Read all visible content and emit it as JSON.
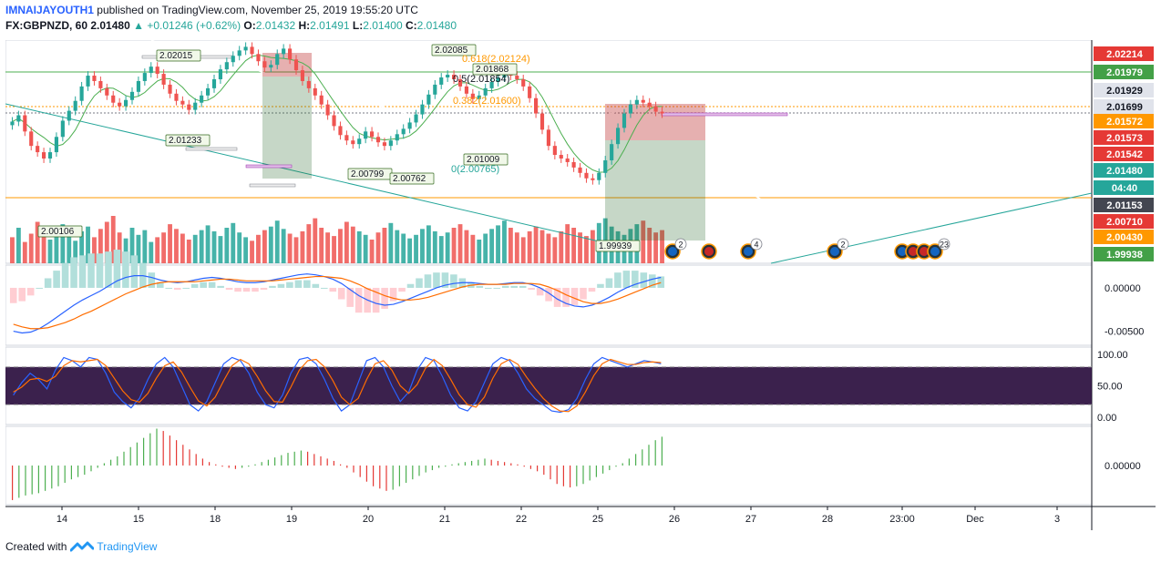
{
  "header": {
    "author": "IMNAIJAYOUTH1",
    "published_text": "published on TradingView.com, November 25, 2019 19:55:20 UTC",
    "symbol": "FX:GBPNZD, 60",
    "last": "2.01480",
    "change": "+0.01246 (+0.62%)",
    "o_label": "O:",
    "o_value": "2.01432",
    "h_label": "H:",
    "h_value": "2.01491",
    "l_label": "L:",
    "l_value": "2.01400",
    "c_label": "C:",
    "c_value": "2.01480"
  },
  "footer": {
    "created_with": "Created with",
    "brand": "TradingView"
  },
  "colors": {
    "up": "#26a69a",
    "down": "#ef5350",
    "grid": "#f0f3fa",
    "macd": "#2962ff",
    "signal": "#ff6d00",
    "stoch_k": "#2962ff",
    "stoch_d": "#ff6d00",
    "stoch_band": "#2a0e3e",
    "ma": "#4caf50"
  },
  "chart_data": [
    {
      "type": "line",
      "symbol": "FX:GBPNZD",
      "interval": "60",
      "x_ticks": [
        "14",
        "15",
        "18",
        "19",
        "20",
        "21",
        "22",
        "25",
        "26",
        "27",
        "28",
        "23:00",
        "Dec",
        "3"
      ],
      "ylim": [
        1.99938,
        2.02214
      ],
      "price_scale_labels": [
        {
          "value": "2.02214",
          "color": "#e53935"
        },
        {
          "value": "2.01979",
          "color": "#43a047"
        },
        {
          "value": "2.01929",
          "color": "#e0e3eb"
        },
        {
          "value": "2.01699",
          "color": "#e0e3eb"
        },
        {
          "value": "2.01572",
          "color": "#ff9800"
        },
        {
          "value": "2.01573",
          "color": "#e53935"
        },
        {
          "value": "2.01542",
          "color": "#e53935"
        },
        {
          "value": "2.01480",
          "color": "#26a69a"
        },
        {
          "value": "04:40",
          "color": "#26a69a"
        },
        {
          "value": "2.01153",
          "color": "#434651"
        },
        {
          "value": "2.00710",
          "color": "#e53935"
        },
        {
          "value": "2.00430",
          "color": "#ff9800"
        },
        {
          "value": "1.99938",
          "color": "#43a047"
        }
      ],
      "annotations": [
        "2.02015",
        "2.01233",
        "2.00106",
        "2.02085",
        "0.618(2.02124)",
        "2.01868",
        "0.5(2.01854)",
        "0.382(2.01600)",
        "0(2.00765)",
        "2.01009",
        "2.00799",
        "2.00762",
        "1.99939"
      ],
      "event_badges": [
        "2",
        "4",
        "2",
        "23"
      ],
      "close_series": [
        2.0139,
        2.0146,
        2.0128,
        2.0112,
        2.0105,
        2.0098,
        2.0105,
        2.0122,
        2.014,
        2.0151,
        2.0162,
        2.0178,
        2.019,
        2.0184,
        2.0176,
        2.0168,
        2.016,
        2.0156,
        2.0163,
        2.0172,
        2.0184,
        2.0193,
        2.02,
        2.0192,
        2.018,
        2.017,
        2.0162,
        2.0158,
        2.0152,
        2.016,
        2.0168,
        2.0176,
        2.0186,
        2.0197,
        2.0205,
        2.0212,
        2.0218,
        2.0222,
        2.0214,
        2.0206,
        2.0199,
        2.0202,
        2.0214,
        2.022,
        2.0208,
        2.0196,
        2.0184,
        2.0176,
        2.0168,
        2.0158,
        2.0146,
        2.0134,
        2.0124,
        2.0118,
        2.0114,
        2.012,
        2.0128,
        2.0122,
        2.0116,
        2.0112,
        2.0118,
        2.0125,
        2.0131,
        2.0138,
        2.0147,
        2.0158,
        2.0169,
        2.018,
        2.0188,
        2.0191,
        2.0186,
        2.0178,
        2.017,
        2.0164,
        2.0168,
        2.0176,
        2.0183,
        2.0188,
        2.0191,
        2.019,
        2.0186,
        2.0178,
        2.0165,
        2.0148,
        2.013,
        2.0112,
        2.0102,
        2.0098,
        2.0094,
        2.0088,
        2.0082,
        2.0076,
        2.0074,
        2.0082,
        2.0096,
        2.0114,
        2.0132,
        2.0148,
        2.0158,
        2.0163,
        2.016,
        2.0156,
        2.015,
        2.0148
      ],
      "volume_series": [
        22,
        30,
        18,
        25,
        35,
        28,
        20,
        26,
        33,
        24,
        19,
        27,
        31,
        22,
        29,
        35,
        40,
        26,
        21,
        30,
        24,
        28,
        18,
        22,
        26,
        33,
        29,
        25,
        20,
        24,
        28,
        32,
        27,
        23,
        30,
        34,
        26,
        22,
        19,
        24,
        28,
        31,
        36,
        29,
        25,
        22,
        27,
        33,
        38,
        30,
        26,
        23,
        29,
        35,
        31,
        27,
        24,
        20,
        26,
        30,
        34,
        28,
        25,
        21,
        24,
        29,
        32,
        27,
        23,
        26,
        30,
        33,
        28,
        24,
        20,
        25,
        29,
        32,
        36,
        30,
        26,
        22,
        27,
        31,
        28,
        25,
        22,
        27,
        33,
        30,
        26,
        23,
        28,
        34,
        38,
        31,
        27,
        24,
        29,
        33,
        36,
        30,
        26,
        28
      ],
      "volume_color": [
        "d",
        "u",
        "d",
        "d",
        "d",
        "d",
        "u",
        "u",
        "u",
        "u",
        "u",
        "u",
        "u",
        "d",
        "d",
        "d",
        "d",
        "d",
        "u",
        "u",
        "u",
        "u",
        "u",
        "d",
        "d",
        "d",
        "d",
        "d",
        "d",
        "u",
        "u",
        "u",
        "u",
        "u",
        "u",
        "u",
        "u",
        "u",
        "d",
        "d",
        "d",
        "u",
        "u",
        "u",
        "d",
        "d",
        "d",
        "d",
        "d",
        "d",
        "d",
        "d",
        "d",
        "d",
        "d",
        "u",
        "u",
        "d",
        "d",
        "d",
        "u",
        "u",
        "u",
        "u",
        "u",
        "u",
        "u",
        "u",
        "u",
        "u",
        "d",
        "d",
        "d",
        "d",
        "u",
        "u",
        "u",
        "u",
        "u",
        "d",
        "d",
        "d",
        "d",
        "d",
        "d",
        "d",
        "d",
        "d",
        "d",
        "d",
        "d",
        "d",
        "d",
        "u",
        "u",
        "u",
        "u",
        "u",
        "u",
        "u",
        "d",
        "d",
        "d",
        "d"
      ]
    },
    {
      "type": "line",
      "name": "MACD",
      "y_ticks": [
        "0.00000",
        "-0.00500"
      ],
      "macd_series": [
        -0.005,
        -0.0052,
        -0.0051,
        -0.0047,
        -0.0041,
        -0.0034,
        -0.0027,
        -0.002,
        -0.0014,
        -0.0009,
        -0.0004,
        0.0002,
        0.0008,
        0.0012,
        0.0014,
        0.0014,
        0.0012,
        0.0009,
        0.0007,
        0.0006,
        0.0007,
        0.0009,
        0.0011,
        0.0012,
        0.0011,
        0.0009,
        0.0007,
        0.0006,
        0.0006,
        0.0007,
        0.0009,
        0.0011,
        0.0013,
        0.0015,
        0.0016,
        0.0015,
        0.0013,
        0.001,
        0.0005,
        -0.0002,
        -0.0009,
        -0.0014,
        -0.0018,
        -0.002,
        -0.0019,
        -0.0016,
        -0.0012,
        -0.0008,
        -0.0004,
        0.0,
        0.0003,
        0.0005,
        0.0006,
        0.0006,
        0.0005,
        0.0004,
        0.0004,
        0.0005,
        0.0006,
        0.0006,
        0.0004,
        0.0,
        -0.0006,
        -0.0013,
        -0.0018,
        -0.0021,
        -0.0022,
        -0.002,
        -0.0016,
        -0.0011,
        -0.0005,
        0.0,
        0.0004,
        0.0007,
        0.001,
        0.0012
      ],
      "signal_series": [
        -0.0042,
        -0.0045,
        -0.0047,
        -0.0047,
        -0.0046,
        -0.0043,
        -0.004,
        -0.0036,
        -0.0031,
        -0.0027,
        -0.0022,
        -0.0017,
        -0.0012,
        -0.0007,
        -0.0003,
        0.0001,
        0.0004,
        0.0006,
        0.0007,
        0.0007,
        0.0007,
        0.0007,
        0.0008,
        0.0009,
        0.001,
        0.001,
        0.0009,
        0.0008,
        0.0008,
        0.0008,
        0.0008,
        0.0009,
        0.001,
        0.0011,
        0.0012,
        0.0013,
        0.0013,
        0.0012,
        0.0011,
        0.0008,
        0.0004,
        -0.0001,
        -0.0005,
        -0.0009,
        -0.0012,
        -0.0014,
        -0.0014,
        -0.0013,
        -0.0011,
        -0.0008,
        -0.0005,
        -0.0002,
        0.0001,
        0.0003,
        0.0004,
        0.0004,
        0.0004,
        0.0004,
        0.0005,
        0.0005,
        0.0005,
        0.0004,
        0.0001,
        -0.0003,
        -0.0008,
        -0.0012,
        -0.0016,
        -0.0018,
        -0.0018,
        -0.0016,
        -0.0013,
        -0.0009,
        -0.0005,
        -0.0001,
        0.0003,
        0.0006
      ]
    },
    {
      "type": "line",
      "name": "Stochastic",
      "y_ticks": [
        "100.00",
        "50.00",
        "0.00"
      ],
      "band": [
        20,
        80
      ],
      "k_series": [
        35,
        55,
        70,
        60,
        45,
        75,
        95,
        90,
        80,
        95,
        92,
        70,
        40,
        25,
        15,
        30,
        60,
        85,
        95,
        80,
        50,
        20,
        10,
        25,
        55,
        85,
        95,
        90,
        70,
        40,
        20,
        15,
        35,
        70,
        92,
        95,
        85,
        60,
        30,
        10,
        20,
        55,
        90,
        95,
        80,
        50,
        25,
        40,
        75,
        95,
        90,
        65,
        35,
        15,
        10,
        25,
        55,
        85,
        95,
        90,
        70,
        45,
        30,
        20,
        10,
        8,
        12,
        30,
        60,
        85,
        95,
        90,
        85,
        80,
        85,
        90,
        88,
        85
      ],
      "d_series": [
        40,
        48,
        60,
        62,
        57,
        65,
        82,
        90,
        88,
        90,
        92,
        82,
        62,
        42,
        28,
        24,
        38,
        62,
        82,
        88,
        72,
        48,
        26,
        18,
        32,
        58,
        82,
        92,
        85,
        65,
        42,
        25,
        24,
        48,
        75,
        90,
        92,
        80,
        58,
        32,
        20,
        30,
        60,
        85,
        90,
        75,
        50,
        38,
        52,
        78,
        92,
        82,
        60,
        36,
        20,
        16,
        32,
        62,
        85,
        92,
        84,
        64,
        46,
        30,
        18,
        10,
        9,
        18,
        40,
        66,
        85,
        92,
        88,
        84,
        84,
        87,
        88,
        87
      ]
    },
    {
      "type": "bar",
      "name": "Oscillator histogram",
      "y_ticks": [
        "0.00000"
      ],
      "values": [
        -30,
        -28,
        -26,
        -25,
        -24,
        -22,
        -20,
        -18,
        -15,
        -12,
        -10,
        -8,
        -5,
        -2,
        2,
        5,
        8,
        12,
        16,
        20,
        24,
        28,
        32,
        30,
        26,
        22,
        18,
        14,
        10,
        6,
        3,
        1,
        -1,
        -2,
        -3,
        -2,
        -1,
        1,
        3,
        5,
        7,
        9,
        11,
        12,
        13,
        12,
        10,
        8,
        6,
        4,
        1,
        -2,
        -6,
        -10,
        -14,
        -18,
        -20,
        -22,
        -21,
        -18,
        -15,
        -12,
        -9,
        -6,
        -4,
        -2,
        -1,
        1,
        2,
        3,
        4,
        5,
        6,
        5,
        4,
        3,
        2,
        1,
        -1,
        -3,
        -5,
        -8,
        -12,
        -16,
        -18,
        -19,
        -18,
        -16,
        -13,
        -10,
        -7,
        -4,
        -1,
        2,
        6,
        10,
        14,
        18,
        22,
        25
      ]
    }
  ]
}
